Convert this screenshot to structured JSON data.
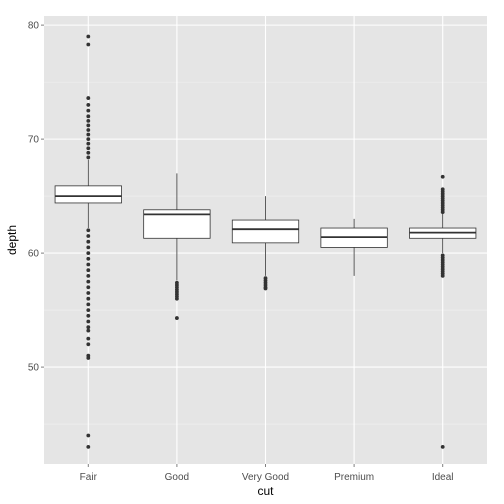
{
  "chart_data": {
    "type": "boxplot",
    "xlabel": "cut",
    "ylabel": "depth",
    "categories": [
      "Fair",
      "Good",
      "Very Good",
      "Premium",
      "Ideal"
    ],
    "y_ticks": [
      50,
      60,
      70,
      80
    ],
    "ylim": [
      41.5,
      80.8
    ],
    "grid": true,
    "colors": {
      "panel": "#E5E5E5",
      "grid_major": "#FFFFFF",
      "grid_minor": "#F2F2F2",
      "box_fill": "#FFFFFF",
      "box_line": "#333333",
      "outlier": "#333333"
    },
    "boxes": [
      {
        "category": "Fair",
        "q1": 64.4,
        "median": 65.0,
        "q3": 65.9,
        "whisker_low": 62.2,
        "whisker_high": 68.2,
        "outliers": [
          79.0,
          78.3,
          73.6,
          73.0,
          72.5,
          72.0,
          71.6,
          71.2,
          70.8,
          70.4,
          70.0,
          69.6,
          69.2,
          68.8,
          68.4,
          62.0,
          61.5,
          61.0,
          60.5,
          60.0,
          59.5,
          59.0,
          58.5,
          58.0,
          57.5,
          57.0,
          56.5,
          56.0,
          55.5,
          55.0,
          54.5,
          54.0,
          53.5,
          53.2,
          52.5,
          52.0,
          51.0,
          50.8,
          44.0,
          43.0
        ]
      },
      {
        "category": "Good",
        "q1": 61.3,
        "median": 63.4,
        "q3": 63.8,
        "whisker_low": 57.6,
        "whisker_high": 67.0,
        "outliers": [
          57.4,
          57.2,
          57.0,
          56.8,
          56.6,
          56.4,
          56.2,
          56.0,
          54.3
        ]
      },
      {
        "category": "Very Good",
        "q1": 60.9,
        "median": 62.1,
        "q3": 62.9,
        "whisker_low": 58.0,
        "whisker_high": 65.0,
        "outliers": [
          57.8,
          57.6,
          57.4,
          57.2,
          57.0,
          56.9
        ]
      },
      {
        "category": "Premium",
        "q1": 60.5,
        "median": 61.4,
        "q3": 62.2,
        "whisker_low": 58.0,
        "whisker_high": 63.0,
        "outliers": []
      },
      {
        "category": "Ideal",
        "q1": 61.3,
        "median": 61.8,
        "q3": 62.2,
        "whisker_low": 60.0,
        "whisker_high": 63.5,
        "outliers": [
          66.7,
          65.6,
          65.4,
          65.2,
          65.0,
          64.8,
          64.6,
          64.4,
          64.2,
          64.0,
          63.8,
          63.6,
          59.8,
          59.6,
          59.4,
          59.2,
          59.0,
          58.8,
          58.6,
          58.4,
          58.2,
          58.0,
          43.0
        ]
      }
    ]
  }
}
